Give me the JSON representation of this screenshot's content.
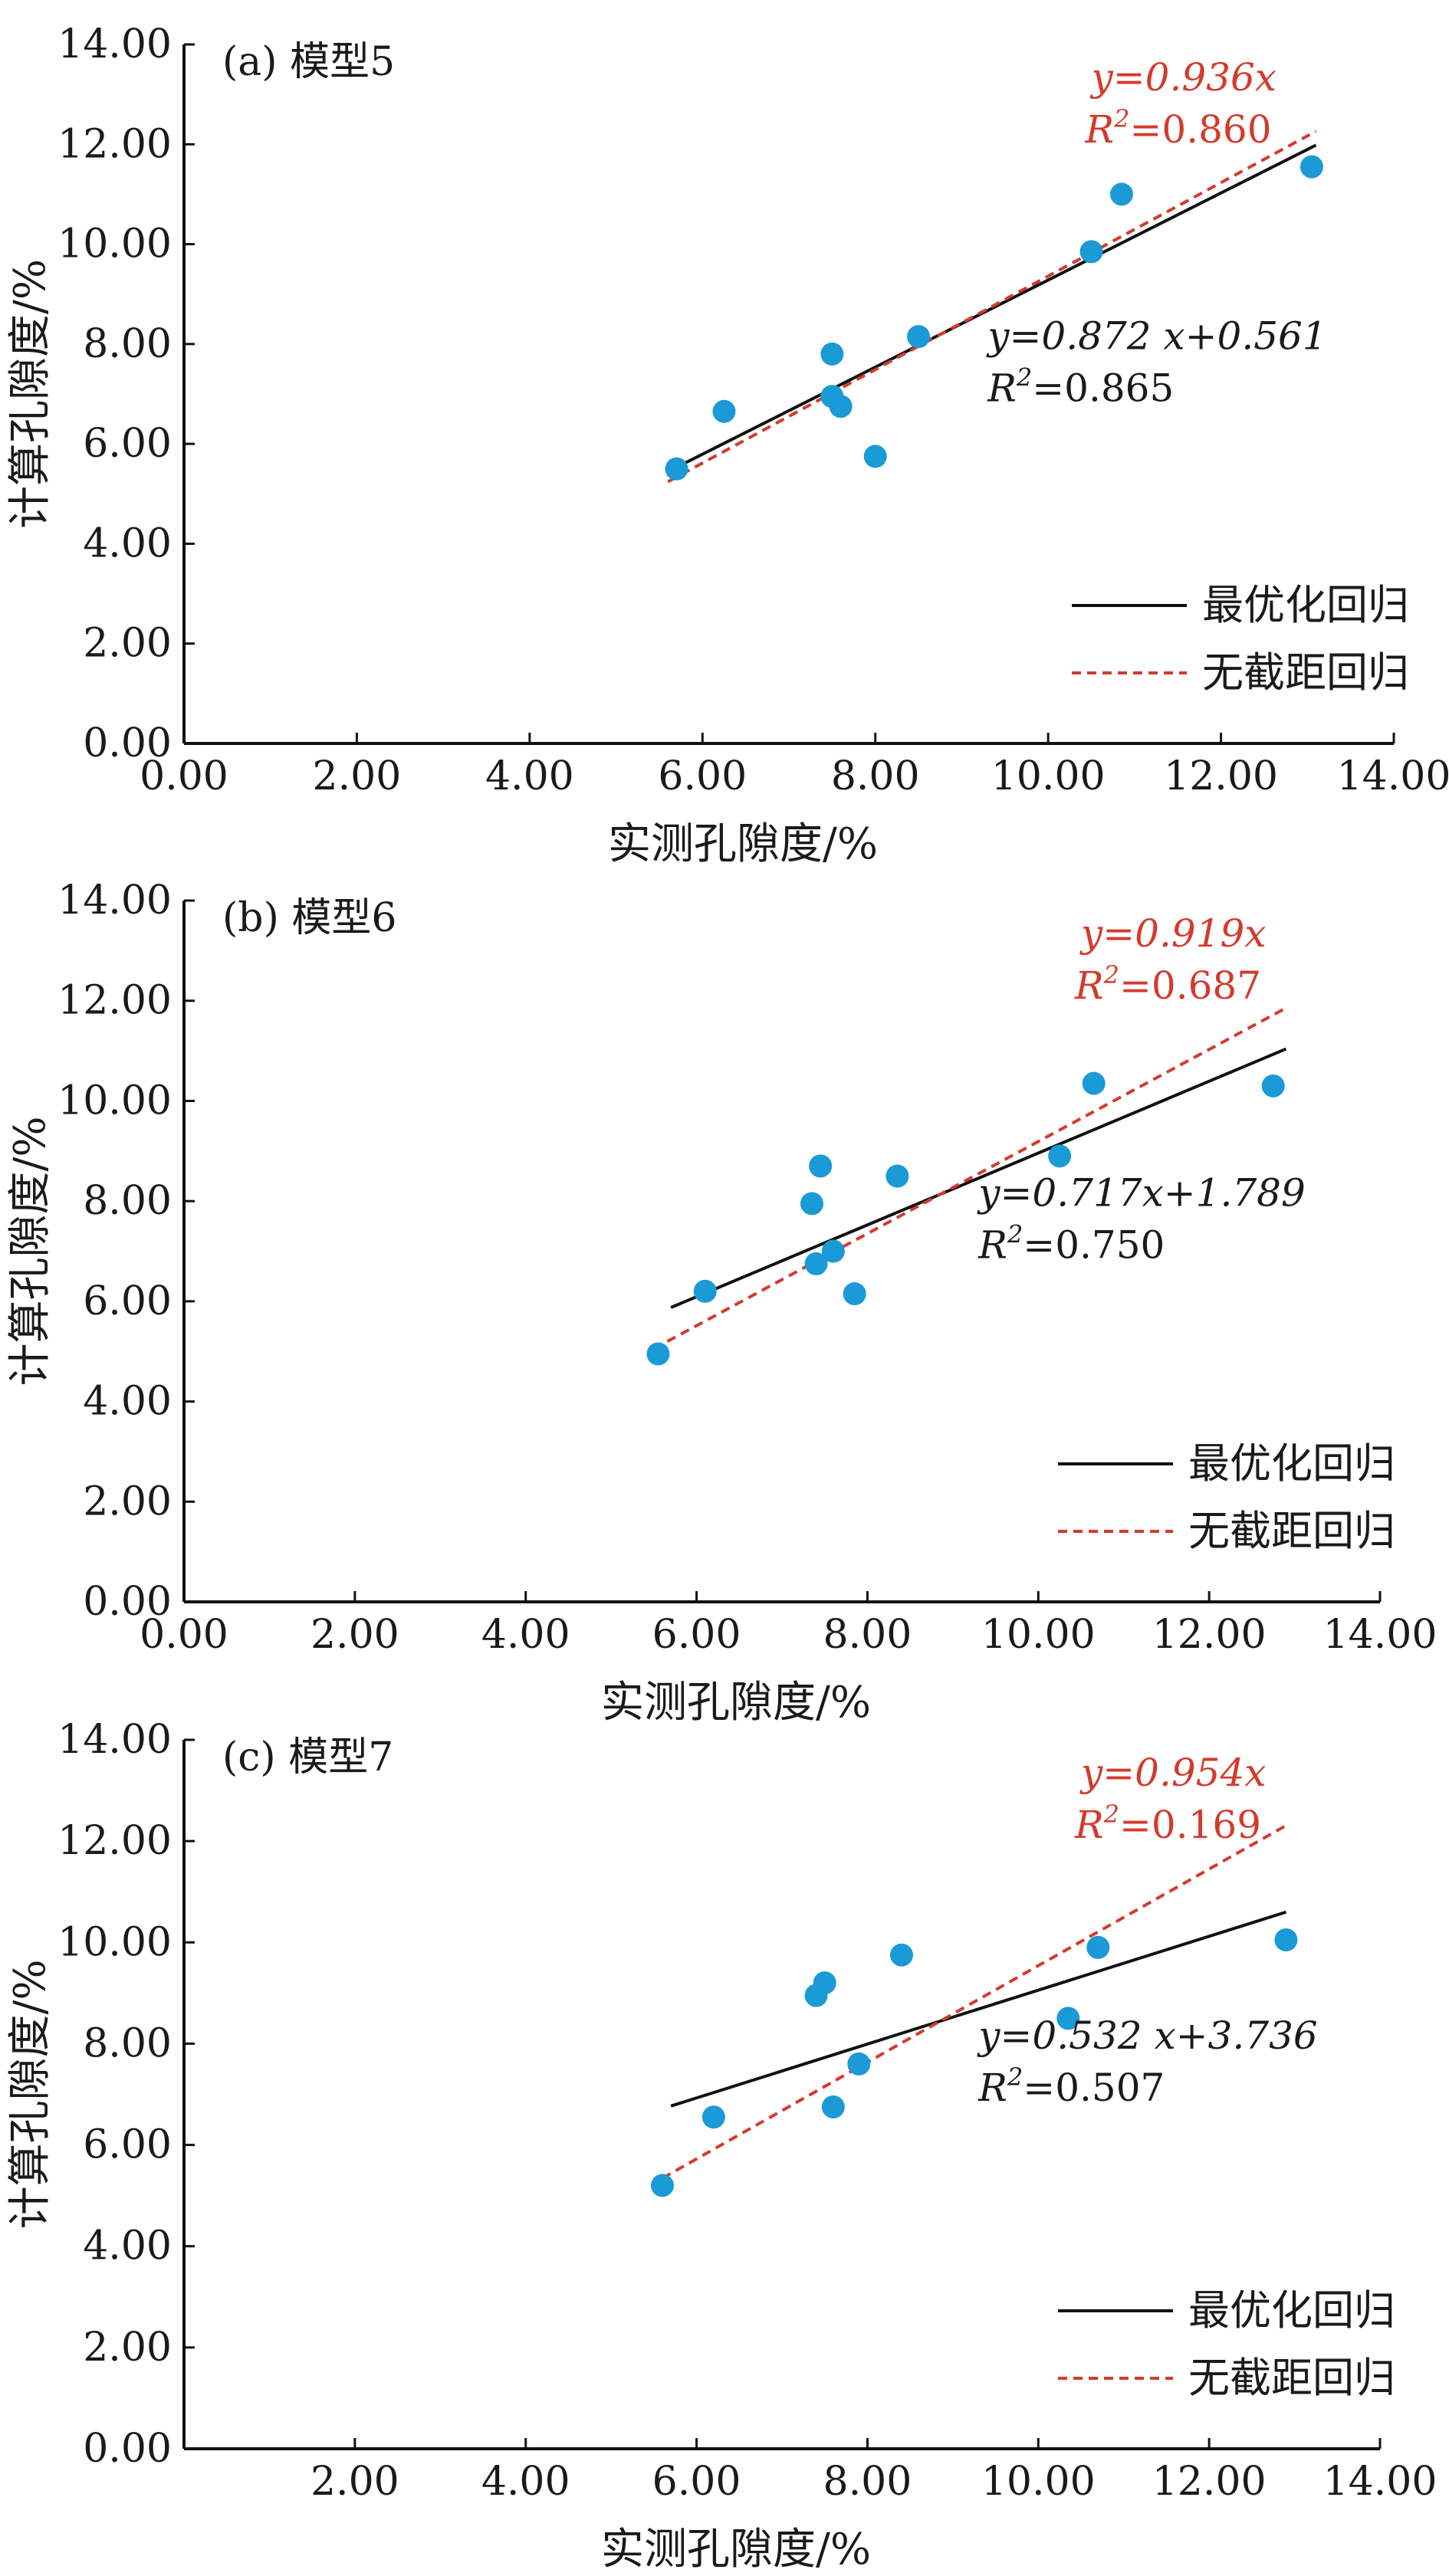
{
  "figure": {
    "point_color": "#1a9ad6",
    "optimal_line_color": "#111111",
    "no_intercept_line_color": "#d43a2c",
    "legend": {
      "optimal_label": "最优化回归",
      "no_intercept_label": "无截距回归"
    }
  },
  "chart_data": [
    {
      "type": "scatter",
      "title": "(a) 模型5",
      "xlabel": "实测孔隙度/%",
      "ylabel": "计算孔隙度/%",
      "xlim": [
        0,
        14
      ],
      "ylim": [
        0,
        14
      ],
      "x_ticks": [
        "0.00",
        "2.00",
        "4.00",
        "6.00",
        "8.00",
        "10.00",
        "12.00",
        "14.00"
      ],
      "y_ticks": [
        "0.00",
        "2.00",
        "4.00",
        "6.00",
        "8.00",
        "10.00",
        "12.00",
        "14.00"
      ],
      "grid": false,
      "legend_position": "bottom-right",
      "points": [
        {
          "x": 5.7,
          "y": 5.5
        },
        {
          "x": 6.25,
          "y": 6.65
        },
        {
          "x": 7.5,
          "y": 7.8
        },
        {
          "x": 7.5,
          "y": 6.95
        },
        {
          "x": 7.6,
          "y": 6.75
        },
        {
          "x": 8.0,
          "y": 5.75
        },
        {
          "x": 8.5,
          "y": 8.15
        },
        {
          "x": 10.5,
          "y": 9.85
        },
        {
          "x": 10.85,
          "y": 11.0
        },
        {
          "x": 13.05,
          "y": 11.55
        }
      ],
      "series": [
        {
          "name": "最优化回归",
          "slope": 0.872,
          "intercept": 0.561,
          "x_range": [
            5.6,
            13.1
          ]
        },
        {
          "name": "无截距回归",
          "slope": 0.936,
          "intercept": 0,
          "x_range": [
            5.6,
            13.1
          ]
        }
      ],
      "annotations": {
        "no_intercept_eq": "y=0.936x",
        "no_intercept_r2": "R²=0.860",
        "optimal_eq": "y=0.872 x+0.561",
        "optimal_r2": "R²=0.865"
      }
    },
    {
      "type": "scatter",
      "title": "(b) 模型6",
      "xlabel": "实测孔隙度/%",
      "ylabel": "计算孔隙度/%",
      "xlim": [
        0,
        14
      ],
      "ylim": [
        0,
        14
      ],
      "x_ticks": [
        "0.00",
        "2.00",
        "4.00",
        "6.00",
        "8.00",
        "10.00",
        "12.00",
        "14.00"
      ],
      "y_ticks": [
        "0.00",
        "2.00",
        "4.00",
        "6.00",
        "8.00",
        "10.00",
        "12.00",
        "14.00"
      ],
      "grid": false,
      "legend_position": "bottom-right",
      "points": [
        {
          "x": 5.55,
          "y": 4.95
        },
        {
          "x": 6.1,
          "y": 6.2
        },
        {
          "x": 7.35,
          "y": 7.95
        },
        {
          "x": 7.45,
          "y": 8.7
        },
        {
          "x": 7.4,
          "y": 6.75
        },
        {
          "x": 7.6,
          "y": 7.0
        },
        {
          "x": 7.85,
          "y": 6.15
        },
        {
          "x": 8.35,
          "y": 8.5
        },
        {
          "x": 10.25,
          "y": 8.9
        },
        {
          "x": 10.65,
          "y": 10.35
        },
        {
          "x": 12.75,
          "y": 10.3
        }
      ],
      "series": [
        {
          "name": "最优化回归",
          "slope": 0.717,
          "intercept": 1.789,
          "x_range": [
            5.7,
            12.9
          ]
        },
        {
          "name": "无截距回归",
          "slope": 0.919,
          "intercept": 0,
          "x_range": [
            5.5,
            12.9
          ]
        }
      ],
      "annotations": {
        "no_intercept_eq": "y=0.919x",
        "no_intercept_r2": "R²=0.687",
        "optimal_eq": "y=0.717x+1.789",
        "optimal_r2": "R²=0.750"
      }
    },
    {
      "type": "scatter",
      "title": "(c) 模型7",
      "xlabel": "实测孔隙度/%",
      "ylabel": "计算孔隙度/%",
      "xlim": [
        0,
        14
      ],
      "ylim": [
        0,
        14
      ],
      "x_ticks": [
        "",
        "2.00",
        "4.00",
        "6.00",
        "8.00",
        "10.00",
        "12.00",
        "14.00"
      ],
      "y_ticks": [
        "0.00",
        "2.00",
        "4.00",
        "6.00",
        "8.00",
        "10.00",
        "12.00",
        "14.00"
      ],
      "grid": false,
      "legend_position": "bottom-right",
      "points": [
        {
          "x": 5.6,
          "y": 5.2
        },
        {
          "x": 6.2,
          "y": 6.55
        },
        {
          "x": 7.4,
          "y": 8.95
        },
        {
          "x": 7.5,
          "y": 9.2
        },
        {
          "x": 7.6,
          "y": 6.75
        },
        {
          "x": 7.9,
          "y": 7.6
        },
        {
          "x": 8.4,
          "y": 9.75
        },
        {
          "x": 10.35,
          "y": 8.5
        },
        {
          "x": 10.7,
          "y": 9.9
        },
        {
          "x": 12.9,
          "y": 10.05
        }
      ],
      "series": [
        {
          "name": "最优化回归",
          "slope": 0.532,
          "intercept": 3.736,
          "x_range": [
            5.7,
            12.9
          ]
        },
        {
          "name": "无截距回归",
          "slope": 0.954,
          "intercept": 0,
          "x_range": [
            5.6,
            12.9
          ]
        }
      ],
      "annotations": {
        "no_intercept_eq": "y=0.954x",
        "no_intercept_r2": "R²=0.169",
        "optimal_eq": "y=0.532 x+3.736",
        "optimal_r2": "R²=0.507"
      }
    }
  ]
}
